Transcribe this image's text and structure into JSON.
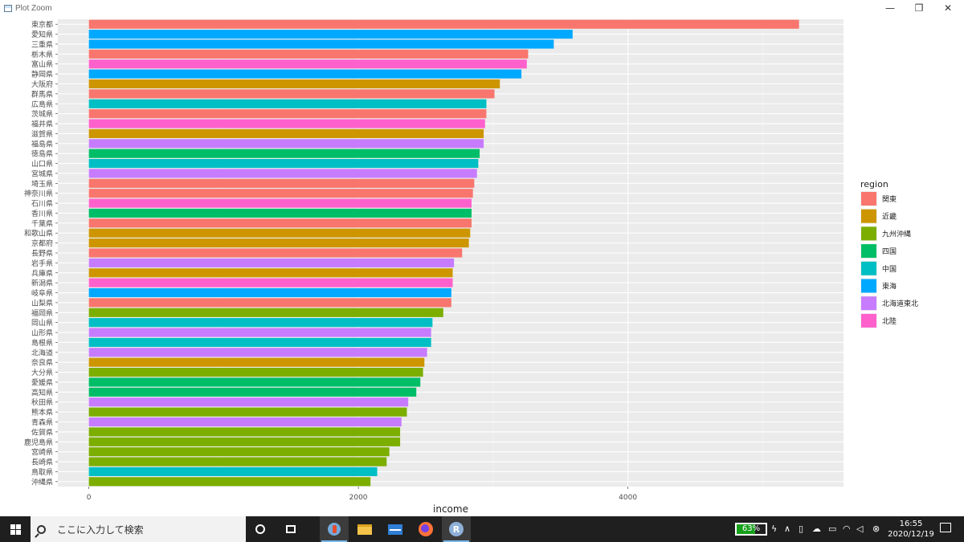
{
  "window": {
    "title": "Plot Zoom",
    "minimize_glyph": "—",
    "maximize_glyph": "❐",
    "close_glyph": "✕",
    "icon": "plot-window-icon"
  },
  "chart_data": {
    "type": "bar",
    "orientation": "horizontal",
    "title": "",
    "xlabel": "income",
    "ylabel": "",
    "xlim": [
      -230,
      5600
    ],
    "ticks": [
      0,
      2000,
      4000
    ],
    "tick_labels": [
      "0",
      "2000",
      "4000"
    ],
    "grid": true,
    "background": "#ebebeb",
    "legend": {
      "title": "region",
      "placement": "right",
      "entries": [
        "関東",
        "近畿",
        "九州沖縄",
        "四国",
        "中国",
        "東海",
        "北海道東北",
        "北陸"
      ]
    },
    "colors": {
      "関東": "#f8766d",
      "近畿": "#cd9600",
      "九州沖縄": "#7cae00",
      "四国": "#00be67",
      "中国": "#00bfc4",
      "東海": "#00a9ff",
      "北海道東北": "#c77cff",
      "北陸": "#ff61cc"
    },
    "categories": [
      "東京都",
      "愛知県",
      "三重県",
      "栃木県",
      "富山県",
      "静岡県",
      "大阪府",
      "群馬県",
      "広島県",
      "茨城県",
      "福井県",
      "滋賀県",
      "福島県",
      "徳島県",
      "山口県",
      "宮城県",
      "埼玉県",
      "神奈川県",
      "石川県",
      "香川県",
      "千葉県",
      "和歌山県",
      "京都府",
      "長野県",
      "岩手県",
      "兵庫県",
      "新潟県",
      "岐阜県",
      "山梨県",
      "福岡県",
      "岡山県",
      "山形県",
      "島根県",
      "北海道",
      "奈良県",
      "大分県",
      "愛媛県",
      "高知県",
      "秋田県",
      "熊本県",
      "青森県",
      "佐賀県",
      "鹿児島県",
      "宮崎県",
      "長崎県",
      "鳥取県",
      "沖縄県"
    ],
    "values": [
      5270,
      3590,
      3450,
      3260,
      3250,
      3210,
      3050,
      3010,
      2950,
      2950,
      2940,
      2930,
      2930,
      2900,
      2890,
      2880,
      2860,
      2850,
      2840,
      2840,
      2840,
      2830,
      2820,
      2770,
      2710,
      2700,
      2700,
      2690,
      2690,
      2630,
      2550,
      2540,
      2540,
      2510,
      2490,
      2480,
      2460,
      2430,
      2370,
      2360,
      2320,
      2310,
      2310,
      2230,
      2210,
      2140,
      2090
    ],
    "regions": [
      "関東",
      "東海",
      "東海",
      "関東",
      "北陸",
      "東海",
      "近畿",
      "関東",
      "中国",
      "関東",
      "北陸",
      "近畿",
      "北海道東北",
      "四国",
      "中国",
      "北海道東北",
      "関東",
      "関東",
      "北陸",
      "四国",
      "関東",
      "近畿",
      "近畿",
      "関東",
      "北海道東北",
      "近畿",
      "北陸",
      "東海",
      "関東",
      "九州沖縄",
      "中国",
      "北海道東北",
      "中国",
      "北海道東北",
      "近畿",
      "九州沖縄",
      "四国",
      "四国",
      "北海道東北",
      "九州沖縄",
      "北海道東北",
      "九州沖縄",
      "九州沖縄",
      "九州沖縄",
      "九州沖縄",
      "中国",
      "九州沖縄"
    ]
  },
  "taskbar": {
    "start_icon": "windows-logo-icon",
    "search_placeholder": "ここに入力して検索",
    "apps": [
      "cortana-icon",
      "task-view-icon",
      "rstudio-icon",
      "file-explorer-icon",
      "mail-icon",
      "firefox-icon",
      "r-icon"
    ],
    "battery": "63%",
    "battery_level": 0.63,
    "time": "16:55",
    "date": "2020/12/19"
  }
}
